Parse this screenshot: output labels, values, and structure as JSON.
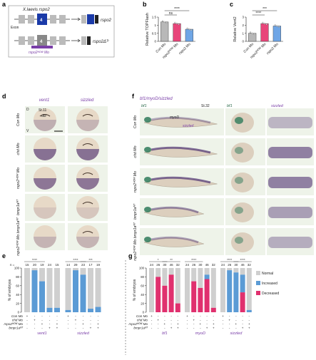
{
  "figure": {
    "panel_labels": [
      "a",
      "b",
      "c",
      "d",
      "e",
      "f",
      "g"
    ],
    "panel_a": {
      "title": "X.laevis rspo2",
      "exon_label": "Exon",
      "row1_target": "rspo2",
      "row2_mo_label": "rspo2ᴴᴼᵂ Mo",
      "row2_target": "rspo2Δᵀʳ"
    },
    "panel_d": {
      "col_headers": [
        "vent1",
        "sizzled"
      ],
      "stage": "St.11",
      "orientation": [
        "D",
        "V"
      ],
      "dbl_label": "dbl",
      "row_labels": [
        "Con Mo",
        "chd Mo",
        "rspo2ᴴᴼᵂ Mo",
        "bmpr1aᴺᵀ",
        "rspo2ᴴᴼᵂ Mo bmpr1aᴺᵀ"
      ]
    },
    "panel_f": {
      "title": "bf1/myoD/sizzled",
      "stage": "St.32",
      "col_headers": [
        "bf1",
        "bf1",
        "sizzled"
      ],
      "embryo_labels": [
        "myoD",
        "sizzled"
      ],
      "row_labels": [
        "Con Mo",
        "chd Mo",
        "rspo2ᴴᴼᵂ Mo",
        "bmpr1aᴺᵀ",
        "rspo2ᴴᴼᵂ Mo bmpr1aᴺᵀ"
      ]
    },
    "colors": {
      "normal": "#cfcfcf",
      "increased": "#5b9bd5",
      "decreased": "#e0306e",
      "gray_bar": "#b8b8b8",
      "pink_bar": "#e8457a",
      "blue_bar": "#6fa6e6",
      "stain": "#5a3f7a",
      "embryo_bg": "#eef3e9"
    }
  },
  "chart_data": [
    {
      "panel": "b",
      "type": "bar",
      "ylabel": "Relative TOPFlash",
      "categories": [
        "Con Mo",
        "rspo2ᴴᴼᵂ Mo",
        "rspo2 Mo"
      ],
      "values": [
        1.2,
        1.1,
        0.75
      ],
      "ylim": [
        0,
        1.5
      ],
      "yticks": [
        0,
        0.5,
        1.0,
        1.5
      ],
      "significance": [
        {
          "from": 0,
          "to": 1,
          "label": "ns"
        },
        {
          "from": 0,
          "to": 2,
          "label": "****"
        }
      ]
    },
    {
      "panel": "c",
      "type": "bar",
      "ylabel": "Relative Vent2",
      "categories": [
        "Con Mo",
        "rspo2ᴴᴼᵂ Mo",
        "rspo2 Mo"
      ],
      "values": [
        1.0,
        2.2,
        1.9
      ],
      "ylim": [
        0,
        3
      ],
      "yticks": [
        0,
        1,
        2,
        3
      ],
      "significance": [
        {
          "from": 0,
          "to": 1,
          "label": "****"
        },
        {
          "from": 0,
          "to": 2,
          "label": "***"
        }
      ]
    },
    {
      "panel": "e",
      "type": "bar",
      "ylabel": "% of embryos",
      "yticks": [
        0,
        20,
        40,
        60,
        80,
        100
      ],
      "legend": [
        "Normal",
        "Increased",
        "Decreased"
      ],
      "n_prefix": "n =",
      "groups": [
        {
          "name": "vent1",
          "n": [
            15,
            20,
            19,
            24,
            15
          ],
          "increased": [
            0,
            95,
            70,
            10,
            10
          ],
          "decreased": [
            0,
            0,
            0,
            0,
            0
          ],
          "significance": [
            "****",
            ""
          ]
        },
        {
          "name": "sizzled",
          "n": [
            14,
            29,
            23,
            17,
            19
          ],
          "increased": [
            5,
            95,
            85,
            8,
            12
          ],
          "decreased": [
            0,
            0,
            0,
            0,
            0
          ],
          "significance": [
            "****",
            "***"
          ]
        }
      ],
      "conditions": {
        "rows": [
          "Con Mo",
          "chd Mo",
          "rspo2ᴴᴼᵂ Mo",
          "bmpr1aᴺᵀ"
        ],
        "marks": [
          [
            "+",
            "-",
            "-",
            "-",
            "-"
          ],
          [
            "-",
            "+",
            "-",
            "-",
            "-"
          ],
          [
            "-",
            "-",
            "+",
            "-",
            "+"
          ],
          [
            "-",
            "-",
            "-",
            "+",
            "+"
          ]
        ]
      }
    },
    {
      "panel": "g",
      "type": "bar",
      "ylabel": "% of embryos",
      "yticks": [
        0,
        20,
        40,
        60,
        80,
        100
      ],
      "legend": [
        "Normal",
        "Increased",
        "Decreased"
      ],
      "groups": [
        {
          "name": "bf1",
          "n": [
            24,
            26,
            30,
            46,
            32
          ],
          "increased": [
            0,
            0,
            0,
            0,
            0
          ],
          "decreased": [
            0,
            80,
            60,
            85,
            20
          ],
          "significance": [
            "*",
            "**"
          ]
        },
        {
          "name": "myoD",
          "n": [
            24,
            26,
            30,
            46,
            32
          ],
          "increased": [
            0,
            0,
            0,
            10,
            0
          ],
          "decreased": [
            0,
            70,
            55,
            75,
            10
          ],
          "significance": [
            "****",
            ""
          ]
        },
        {
          "name": "sizzled",
          "n": [
            24,
            26,
            30,
            46,
            32
          ],
          "increased": [
            0,
            95,
            90,
            40,
            5
          ],
          "decreased": [
            0,
            0,
            0,
            45,
            0
          ],
          "significance": [
            "****",
            "****"
          ]
        }
      ],
      "conditions": {
        "rows": [
          "Con Mo",
          "chd Mo",
          "rspo2ᴴᴼᵂ Mo",
          "bmpr1aᴺᵀ"
        ],
        "marks": [
          [
            "+",
            "-",
            "-",
            "-",
            "-"
          ],
          [
            "-",
            "+",
            "-",
            "-",
            "-"
          ],
          [
            "-",
            "-",
            "+",
            "-",
            "+"
          ],
          [
            "-",
            "-",
            "-",
            "+",
            "+"
          ]
        ]
      }
    }
  ]
}
